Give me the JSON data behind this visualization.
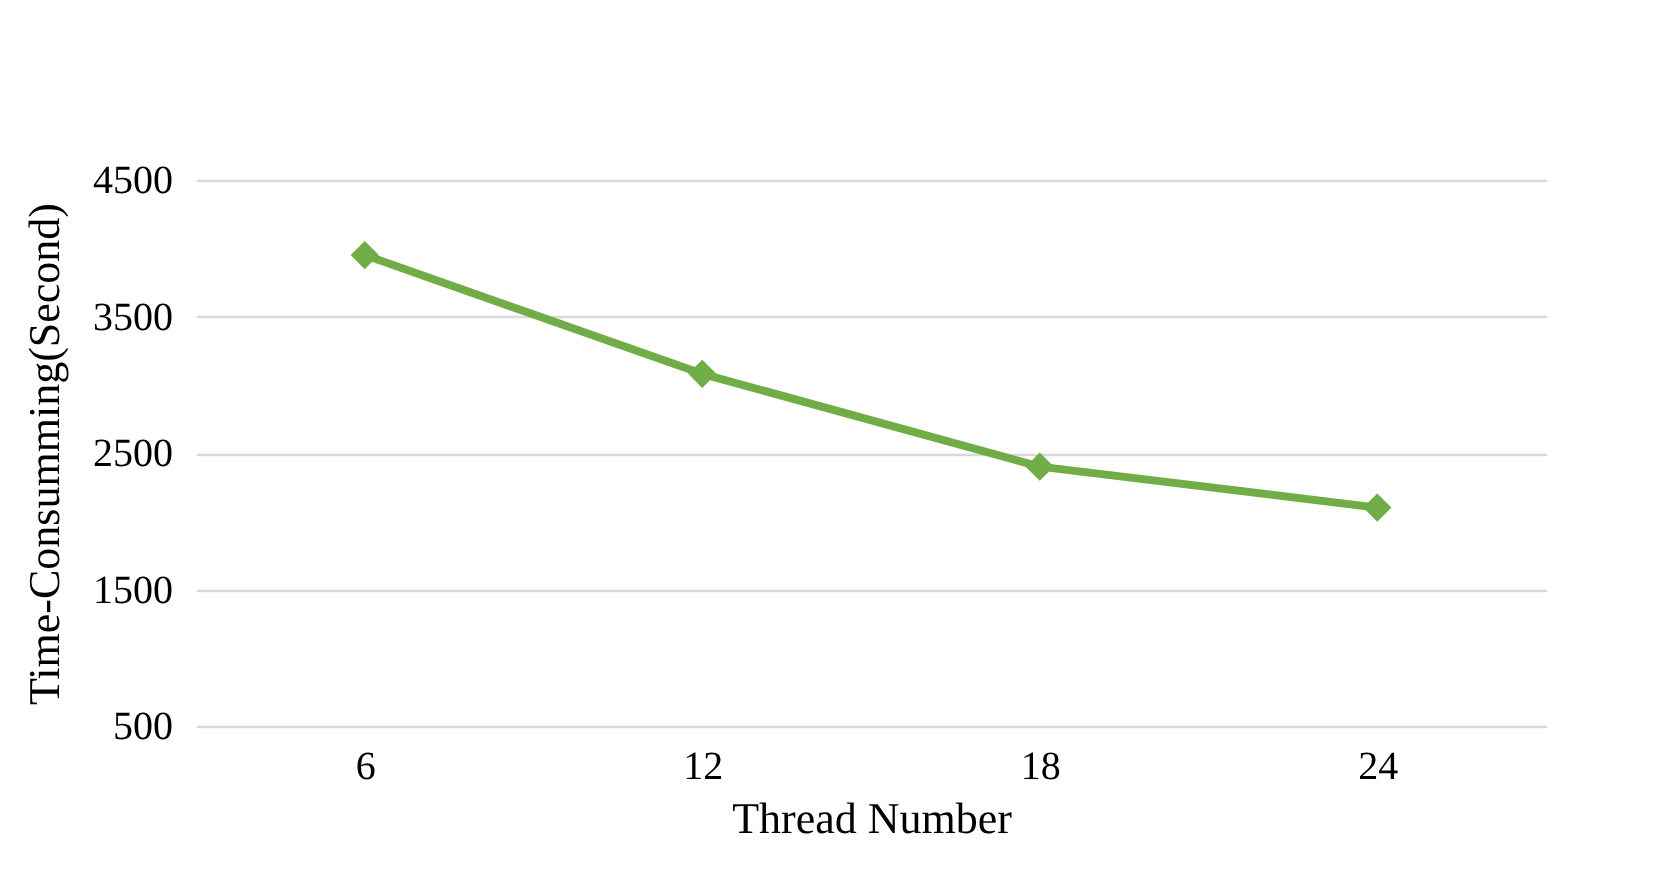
{
  "chart_data": {
    "type": "line",
    "xlabel": "Thread Number",
    "ylabel": "Time-Consumming(Second)",
    "categories": [
      "6",
      "12",
      "18",
      "24"
    ],
    "series": [
      {
        "color": "#70ad47",
        "values": [
          3950,
          3080,
          2400,
          2100
        ]
      }
    ],
    "ylim": [
      500,
      4500
    ],
    "yticks": [
      500,
      1500,
      2500,
      3500,
      4500
    ],
    "grid": "y",
    "marker": "diamond",
    "line_style": "solid"
  }
}
